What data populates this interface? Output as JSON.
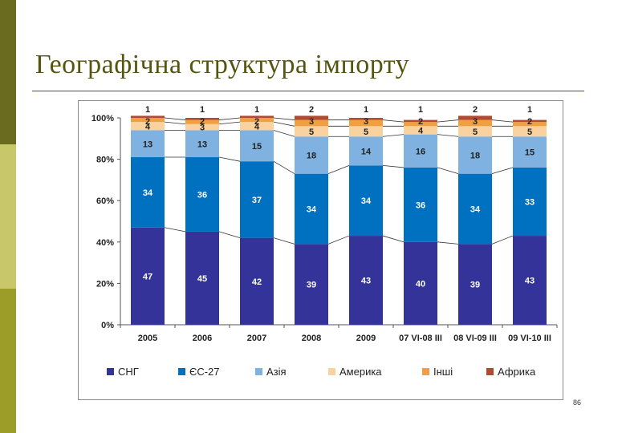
{
  "slide": {
    "title": "Географічна структура імпорту",
    "page_number": "86"
  },
  "chart_data": {
    "type": "bar",
    "stacked": true,
    "categories": [
      "2005",
      "2006",
      "2007",
      "2008",
      "2009",
      "07 VI-08 III",
      "08 VI-09 III",
      "09 VI-10 III"
    ],
    "y_ticks": [
      "0%",
      "20%",
      "40%",
      "60%",
      "80%",
      "100%"
    ],
    "ylim": [
      0,
      100
    ],
    "legend_position": "bottom",
    "series": [
      {
        "name": "СНГ",
        "color": "#333399",
        "values": [
          47,
          45,
          42,
          39,
          43,
          40,
          39,
          43
        ]
      },
      {
        "name": "ЄС-27",
        "color": "#0070c0",
        "values": [
          34,
          36,
          37,
          34,
          34,
          36,
          34,
          33
        ]
      },
      {
        "name": "Азія",
        "color": "#7fb2e0",
        "values": [
          13,
          13,
          15,
          18,
          14,
          16,
          18,
          15
        ]
      },
      {
        "name": "Америка",
        "color": "#fad2a0",
        "values": [
          4,
          3,
          4,
          5,
          5,
          4,
          5,
          5
        ]
      },
      {
        "name": "Інші",
        "color": "#f0a040",
        "values": [
          2,
          2,
          2,
          3,
          3,
          2,
          3,
          2
        ]
      },
      {
        "name": "Африка",
        "color": "#b04a30",
        "values": [
          1,
          1,
          1,
          2,
          1,
          1,
          2,
          1
        ]
      }
    ]
  }
}
